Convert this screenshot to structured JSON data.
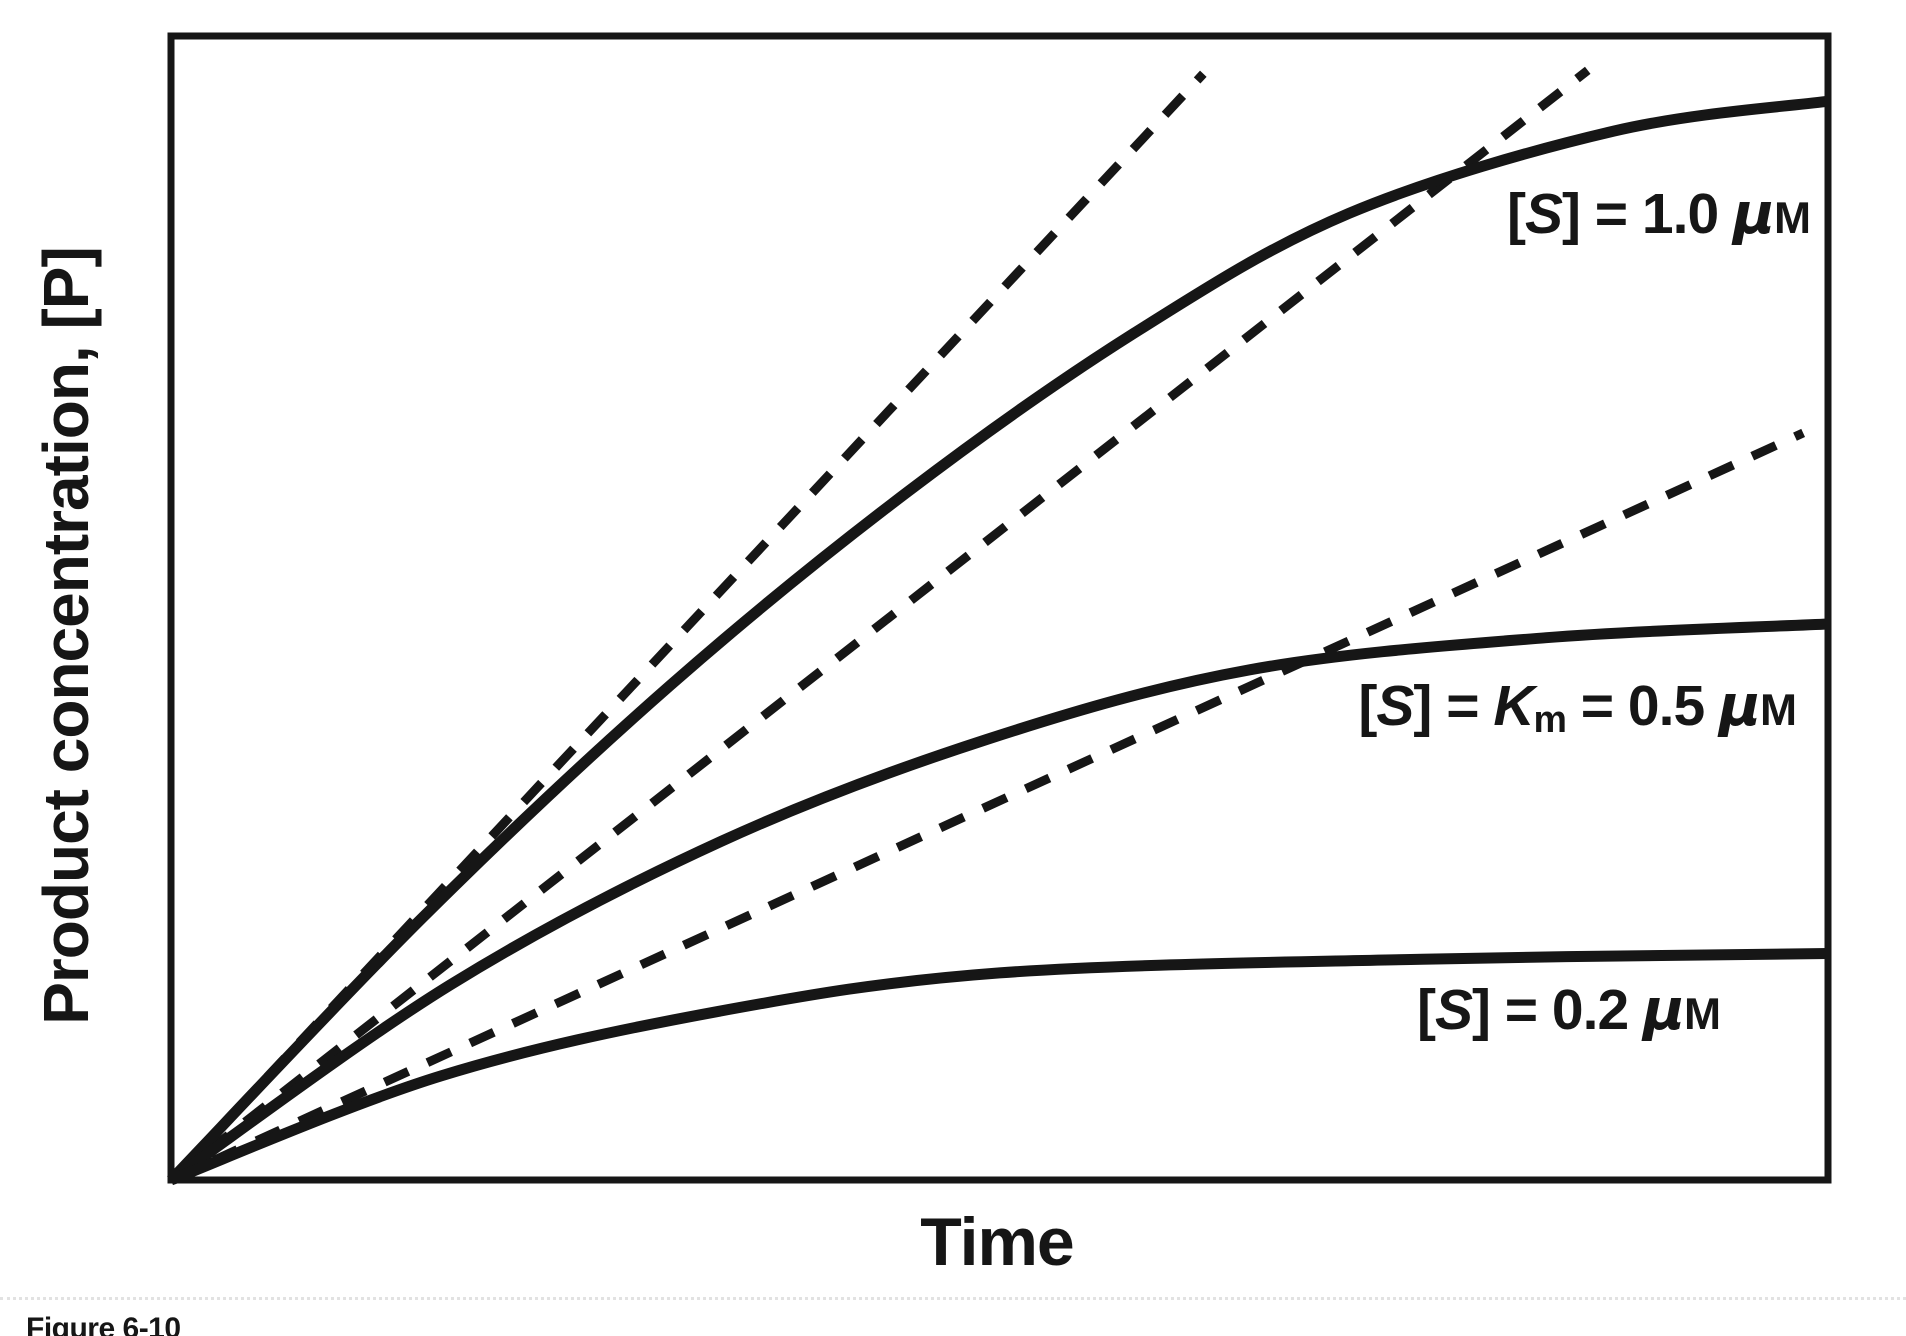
{
  "figure": {
    "caption": "Figure 6-10"
  },
  "chart_data": {
    "type": "line",
    "title": "",
    "xlabel": "Time",
    "ylabel": "Product concentration, [P]",
    "axes_note": "both axes unlabeled and untick-marked; values are normalized 0-1 fractions of the plotted ranges",
    "x_range": [
      0,
      1
    ],
    "y_range": [
      0,
      1
    ],
    "grid": false,
    "legend_position": "labels drawn beside curves inside plot",
    "ink_color": "#161616",
    "series": [
      {
        "name": "[S] = 1.0 μM",
        "style": "solid",
        "points": [
          [
            0,
            0
          ],
          [
            0.153,
            0.231
          ],
          [
            0.301,
            0.432
          ],
          [
            0.444,
            0.601
          ],
          [
            0.581,
            0.74
          ],
          [
            0.711,
            0.845
          ],
          [
            0.871,
            0.917
          ],
          [
            1,
            0.943
          ]
        ]
      },
      {
        "name": "[S] = Km = 0.5 μM",
        "style": "solid",
        "points": [
          [
            0,
            0
          ],
          [
            0.169,
            0.171
          ],
          [
            0.332,
            0.296
          ],
          [
            0.492,
            0.385
          ],
          [
            0.651,
            0.446
          ],
          [
            0.83,
            0.474
          ],
          [
            1,
            0.486
          ]
        ]
      },
      {
        "name": "[S] = 0.2 μM",
        "style": "solid",
        "points": [
          [
            0,
            0
          ],
          [
            0.163,
            0.091
          ],
          [
            0.329,
            0.147
          ],
          [
            0.5,
            0.181
          ],
          [
            0.755,
            0.193
          ],
          [
            1,
            0.198
          ]
        ]
      }
    ],
    "tangents": [
      {
        "name": "initial-velocity tangent for [S] = 1.0 μM",
        "style": "dashed",
        "from": [
          0,
          0
        ],
        "to": [
          0.623,
          0.967
        ]
      },
      {
        "name": "initial-velocity tangent for [S] = 0.5 μM",
        "style": "dashed",
        "from": [
          0,
          0
        ],
        "to": [
          0.855,
          0.97
        ]
      },
      {
        "name": "initial-velocity tangent for [S] = 0.2 μM",
        "style": "dashed",
        "from": [
          0,
          0
        ],
        "to": [
          0.985,
          0.653
        ]
      }
    ],
    "curve_labels": [
      {
        "plain": "[S] = 1.0 μM",
        "parts": [
          {
            "t": "[",
            "s": "r"
          },
          {
            "t": "S",
            "s": "i"
          },
          {
            "t": "]",
            "s": "r"
          },
          {
            "t": " = 1.0 ",
            "s": "r"
          },
          {
            "t": "μ",
            "s": "mu"
          },
          {
            "t": "M",
            "s": "sc"
          }
        ]
      },
      {
        "plain": "[S] = Km = 0.5 μM",
        "parts": [
          {
            "t": "[",
            "s": "r"
          },
          {
            "t": "S",
            "s": "i"
          },
          {
            "t": "]",
            "s": "r"
          },
          {
            "t": " = ",
            "s": "r"
          },
          {
            "t": "K",
            "s": "i"
          },
          {
            "t": "m",
            "s": "sub"
          },
          {
            "t": " = 0.5 ",
            "s": "r"
          },
          {
            "t": "μ",
            "s": "mu"
          },
          {
            "t": "M",
            "s": "sc"
          }
        ]
      },
      {
        "plain": "[S] = 0.2 μM",
        "parts": [
          {
            "t": "[",
            "s": "r"
          },
          {
            "t": "S",
            "s": "i"
          },
          {
            "t": "]",
            "s": "r"
          },
          {
            "t": " = 0.2 ",
            "s": "r"
          },
          {
            "t": "μ",
            "s": "mu"
          },
          {
            "t": "M",
            "s": "sc"
          }
        ]
      }
    ]
  }
}
